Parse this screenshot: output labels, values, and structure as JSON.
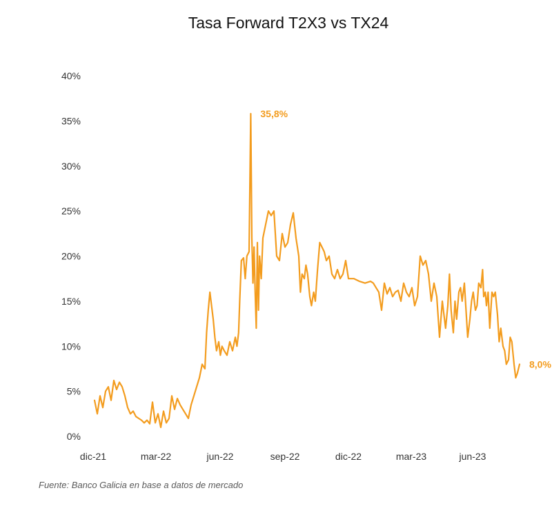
{
  "chart_data": {
    "type": "line",
    "title": "Tasa Forward T2X3 vs TX24",
    "xlabel": "",
    "ylabel": "",
    "ylim": [
      0,
      40
    ],
    "yticks": [
      "0%",
      "5%",
      "10%",
      "15%",
      "20%",
      "25%",
      "30%",
      "35%",
      "40%"
    ],
    "xticks": [
      "dic-21",
      "mar-22",
      "jun-22",
      "sep-22",
      "dic-22",
      "mar-23",
      "jun-23"
    ],
    "grid": false,
    "series": [
      {
        "name": "Tasa Forward T2X3 vs TX24",
        "color": "#F39C1E",
        "points": [
          [
            0.0,
            4.0
          ],
          [
            0.05,
            2.5
          ],
          [
            0.1,
            4.5
          ],
          [
            0.15,
            3.2
          ],
          [
            0.2,
            5.0
          ],
          [
            0.25,
            5.5
          ],
          [
            0.3,
            4.0
          ],
          [
            0.35,
            6.2
          ],
          [
            0.4,
            5.2
          ],
          [
            0.45,
            6.0
          ],
          [
            0.5,
            5.5
          ],
          [
            0.55,
            4.5
          ],
          [
            0.6,
            3.2
          ],
          [
            0.65,
            2.5
          ],
          [
            0.7,
            2.8
          ],
          [
            0.75,
            2.2
          ],
          [
            0.8,
            2.0
          ],
          [
            0.85,
            1.8
          ],
          [
            0.9,
            1.5
          ],
          [
            0.95,
            1.8
          ],
          [
            1.0,
            1.4
          ],
          [
            1.05,
            3.8
          ],
          [
            1.1,
            1.5
          ],
          [
            1.15,
            2.5
          ],
          [
            1.2,
            1.0
          ],
          [
            1.25,
            2.8
          ],
          [
            1.3,
            1.5
          ],
          [
            1.35,
            2.0
          ],
          [
            1.4,
            4.5
          ],
          [
            1.45,
            3.0
          ],
          [
            1.5,
            4.2
          ],
          [
            1.55,
            3.5
          ],
          [
            1.6,
            3.0
          ],
          [
            1.65,
            2.5
          ],
          [
            1.7,
            2.0
          ],
          [
            1.75,
            3.5
          ],
          [
            1.8,
            4.5
          ],
          [
            1.85,
            5.5
          ],
          [
            1.9,
            6.5
          ],
          [
            1.95,
            8.0
          ],
          [
            2.0,
            7.5
          ],
          [
            2.03,
            11.5
          ],
          [
            2.06,
            14.0
          ],
          [
            2.09,
            16.0
          ],
          [
            2.12,
            14.5
          ],
          [
            2.15,
            13.0
          ],
          [
            2.18,
            11.0
          ],
          [
            2.21,
            9.5
          ],
          [
            2.25,
            10.5
          ],
          [
            2.28,
            9.0
          ],
          [
            2.31,
            10.0
          ],
          [
            2.35,
            9.5
          ],
          [
            2.4,
            9.0
          ],
          [
            2.45,
            10.5
          ],
          [
            2.5,
            9.5
          ],
          [
            2.55,
            11.0
          ],
          [
            2.58,
            10.0
          ],
          [
            2.61,
            11.5
          ],
          [
            2.63,
            15.0
          ],
          [
            2.66,
            19.5
          ],
          [
            2.7,
            19.8
          ],
          [
            2.73,
            17.5
          ],
          [
            2.76,
            20.0
          ],
          [
            2.8,
            20.5
          ],
          [
            2.83,
            35.8
          ],
          [
            2.85,
            22.0
          ],
          [
            2.87,
            17.0
          ],
          [
            2.89,
            21.0
          ],
          [
            2.91,
            16.0
          ],
          [
            2.93,
            12.0
          ],
          [
            2.95,
            21.5
          ],
          [
            2.97,
            14.0
          ],
          [
            2.99,
            20.0
          ],
          [
            3.02,
            17.5
          ],
          [
            3.05,
            22.0
          ],
          [
            3.1,
            23.5
          ],
          [
            3.15,
            25.0
          ],
          [
            3.2,
            24.5
          ],
          [
            3.25,
            25.0
          ],
          [
            3.3,
            20.0
          ],
          [
            3.35,
            19.5
          ],
          [
            3.4,
            22.5
          ],
          [
            3.45,
            21.0
          ],
          [
            3.5,
            21.5
          ],
          [
            3.55,
            23.5
          ],
          [
            3.6,
            24.8
          ],
          [
            3.65,
            22.0
          ],
          [
            3.7,
            20.0
          ],
          [
            3.73,
            16.0
          ],
          [
            3.76,
            18.0
          ],
          [
            3.8,
            17.5
          ],
          [
            3.83,
            19.0
          ],
          [
            3.86,
            18.0
          ],
          [
            3.9,
            15.5
          ],
          [
            3.93,
            14.5
          ],
          [
            3.97,
            16.0
          ],
          [
            4.0,
            15.0
          ],
          [
            4.04,
            18.5
          ],
          [
            4.08,
            21.5
          ],
          [
            4.12,
            21.0
          ],
          [
            4.16,
            20.5
          ],
          [
            4.2,
            19.5
          ],
          [
            4.25,
            20.0
          ],
          [
            4.3,
            18.0
          ],
          [
            4.35,
            17.5
          ],
          [
            4.4,
            18.5
          ],
          [
            4.45,
            17.5
          ],
          [
            4.5,
            18.0
          ],
          [
            4.55,
            19.5
          ],
          [
            4.6,
            17.5
          ],
          [
            4.7,
            17.5
          ],
          [
            4.8,
            17.2
          ],
          [
            4.9,
            17.0
          ],
          [
            5.0,
            17.2
          ],
          [
            5.05,
            17.0
          ],
          [
            5.1,
            16.5
          ],
          [
            5.15,
            16.0
          ],
          [
            5.2,
            14.0
          ],
          [
            5.25,
            17.0
          ],
          [
            5.3,
            15.8
          ],
          [
            5.35,
            16.5
          ],
          [
            5.4,
            15.5
          ],
          [
            5.45,
            16.0
          ],
          [
            5.5,
            16.2
          ],
          [
            5.55,
            15.0
          ],
          [
            5.6,
            17.0
          ],
          [
            5.65,
            16.0
          ],
          [
            5.7,
            15.5
          ],
          [
            5.75,
            16.5
          ],
          [
            5.8,
            14.5
          ],
          [
            5.85,
            15.5
          ],
          [
            5.9,
            20.0
          ],
          [
            5.95,
            19.0
          ],
          [
            6.0,
            19.5
          ],
          [
            6.05,
            18.0
          ],
          [
            6.1,
            15.0
          ],
          [
            6.15,
            17.0
          ],
          [
            6.2,
            15.5
          ],
          [
            6.25,
            11.0
          ],
          [
            6.3,
            15.0
          ],
          [
            6.33,
            13.5
          ],
          [
            6.36,
            12.0
          ],
          [
            6.4,
            14.5
          ],
          [
            6.43,
            18.0
          ],
          [
            6.46,
            14.0
          ],
          [
            6.5,
            11.5
          ],
          [
            6.53,
            15.0
          ],
          [
            6.56,
            13.0
          ],
          [
            6.6,
            16.0
          ],
          [
            6.63,
            16.5
          ],
          [
            6.66,
            15.0
          ],
          [
            6.7,
            17.0
          ],
          [
            6.73,
            14.0
          ],
          [
            6.76,
            11.0
          ],
          [
            6.8,
            13.0
          ],
          [
            6.83,
            15.0
          ],
          [
            6.86,
            16.0
          ],
          [
            6.9,
            14.0
          ],
          [
            6.93,
            14.5
          ],
          [
            6.96,
            17.0
          ],
          [
            7.0,
            16.5
          ],
          [
            7.03,
            18.5
          ],
          [
            7.05,
            15.5
          ],
          [
            7.08,
            16.0
          ],
          [
            7.1,
            14.5
          ],
          [
            7.13,
            16.0
          ],
          [
            7.16,
            12.0
          ],
          [
            7.2,
            16.0
          ],
          [
            7.23,
            15.5
          ],
          [
            7.26,
            16.0
          ],
          [
            7.3,
            13.5
          ],
          [
            7.33,
            10.5
          ],
          [
            7.36,
            12.0
          ],
          [
            7.4,
            10.0
          ],
          [
            7.43,
            9.5
          ],
          [
            7.46,
            8.0
          ],
          [
            7.5,
            8.5
          ],
          [
            7.53,
            11.0
          ],
          [
            7.56,
            10.5
          ],
          [
            7.6,
            8.0
          ],
          [
            7.63,
            6.5
          ],
          [
            7.66,
            7.0
          ],
          [
            7.68,
            7.5
          ],
          [
            7.7,
            8.0
          ]
        ]
      }
    ],
    "annotations": [
      {
        "text": "35,8%",
        "x": 2.83,
        "y": 35.8
      },
      {
        "text": "8,0%",
        "x": 7.7,
        "y": 8.0
      }
    ],
    "xlim": [
      0,
      8
    ]
  },
  "source": "Fuente: Banco Galicia en base a datos de mercado"
}
